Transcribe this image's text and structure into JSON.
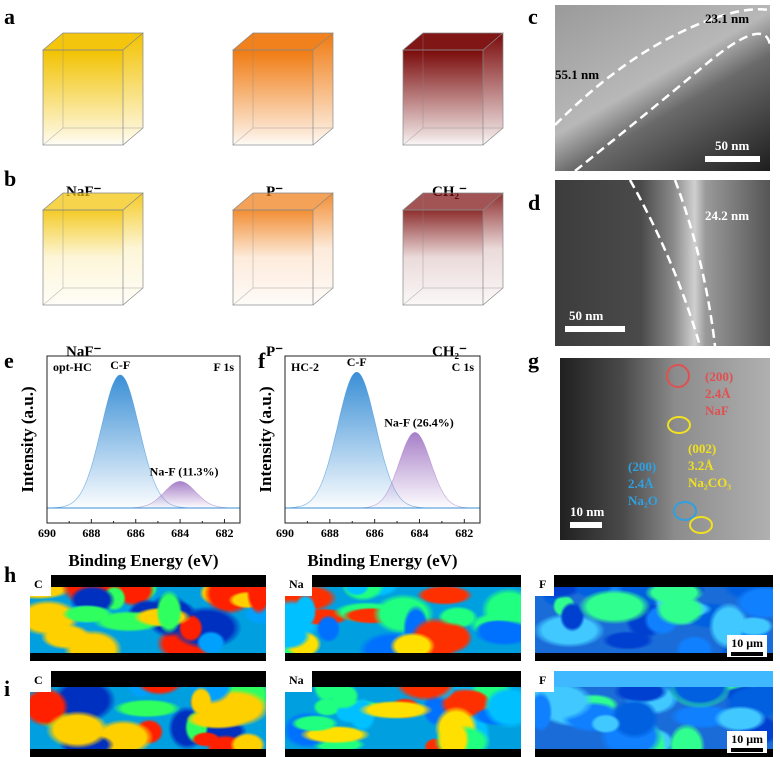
{
  "panels": {
    "a": "a",
    "b": "b",
    "c": "c",
    "d": "d",
    "e": "e",
    "f": "f",
    "g": "g",
    "h": "h",
    "i": "i"
  },
  "cubes": {
    "labels": [
      "NaF⁻",
      "P⁻",
      "CH₂⁻"
    ],
    "colors": [
      "#f2c200",
      "#f07a10",
      "#7a0a0a"
    ]
  },
  "tem_c": {
    "thick1": "23.1 nm",
    "thick2": "55.1 nm",
    "scale": "50 nm"
  },
  "tem_d": {
    "thick": "24.2 nm",
    "scale": "50 nm"
  },
  "tem_g": {
    "naf": [
      "(200)",
      "2.4Å",
      "NaF"
    ],
    "na2co3": [
      "(002)",
      "3.2Å",
      "Na₂CO₃"
    ],
    "na2o": [
      "(200)",
      "2.4Å",
      "Na₂O"
    ],
    "scale": "10 nm",
    "colors": {
      "naf": "#e05050",
      "na2co3": "#f0e020",
      "na2o": "#30a0e0"
    }
  },
  "chart_data": [
    {
      "type": "area",
      "sample": "opt-HC",
      "region": "F 1s",
      "xlabel": "Binding Energy (eV)",
      "ylabel": "Intensity (a.u.)",
      "xlim": [
        690,
        681.3
      ],
      "xticks": [
        690,
        688,
        686,
        684,
        682
      ],
      "peaks": [
        {
          "name": "C-F",
          "center": 686.7,
          "height": 0.95,
          "sigma": 0.85,
          "color": "#3a8fd6"
        },
        {
          "name": "Na-F (11.3%)",
          "center": 684.0,
          "height": 0.19,
          "sigma": 0.7,
          "color": "#a77fc8"
        }
      ]
    },
    {
      "type": "area",
      "sample": "HC-2",
      "region": "C 1s",
      "xlabel": "Binding Energy (eV)",
      "ylabel": "Intensity (a.u.)",
      "xlim": [
        690,
        681.3
      ],
      "xticks": [
        690,
        688,
        686,
        684,
        682
      ],
      "peaks": [
        {
          "name": "C-F",
          "center": 686.8,
          "height": 0.97,
          "sigma": 0.85,
          "color": "#3a8fd6"
        },
        {
          "name": "Na-F (26.4%)",
          "center": 684.2,
          "height": 0.54,
          "sigma": 0.7,
          "color": "#a77fc8"
        }
      ]
    }
  ],
  "maps": {
    "elements": [
      "C",
      "Na",
      "F"
    ],
    "scale": "10 μm"
  }
}
